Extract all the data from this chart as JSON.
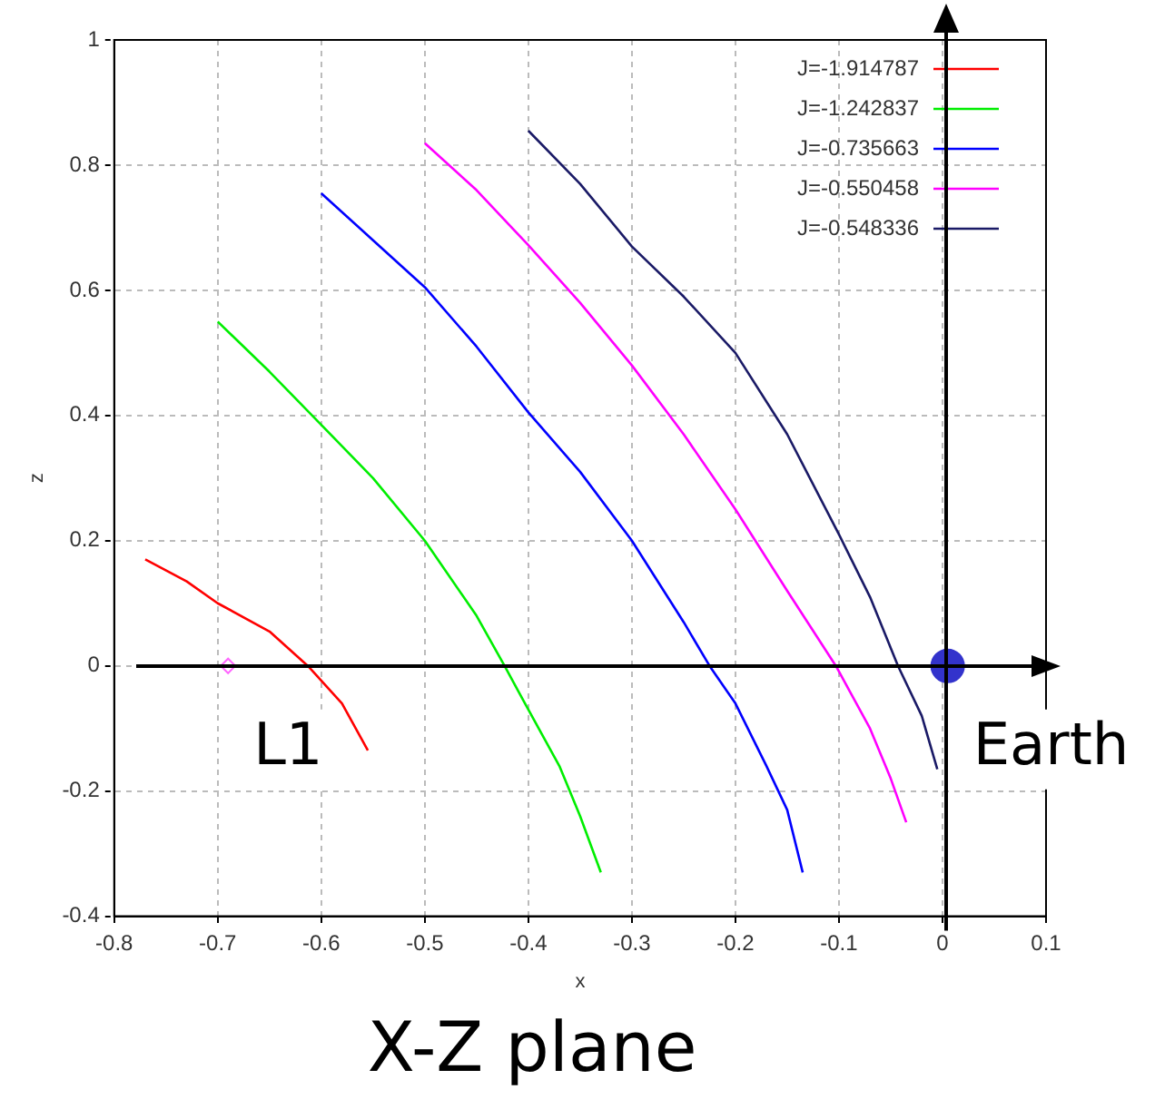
{
  "chart_data": {
    "type": "line",
    "title": "X-Z plane",
    "xlabel": "x",
    "ylabel": "z",
    "xlim": [
      -0.8,
      0.1
    ],
    "xticks": [
      -0.8,
      -0.7,
      -0.6,
      -0.5,
      -0.4,
      -0.3,
      -0.2,
      -0.1,
      0,
      0.1
    ],
    "ylim": [
      -0.4,
      1
    ],
    "yticks": [
      -0.4,
      -0.2,
      0,
      0.2,
      0.4,
      0.6,
      0.8,
      1
    ],
    "grid": true,
    "legend": "top right",
    "marker": "none",
    "annotations": [
      {
        "text": "L1",
        "x": -0.69,
        "y": 0
      },
      {
        "text": "Earth",
        "x": 0.005,
        "y": 0
      }
    ],
    "series": [
      {
        "name": "J=-1.914787",
        "color": "#ff0000",
        "x": [
          -0.77,
          -0.73,
          -0.7,
          -0.65,
          -0.613,
          -0.58,
          -0.555
        ],
        "values": [
          0.17,
          0.135,
          0.1,
          0.055,
          0,
          -0.06,
          -0.135
        ]
      },
      {
        "name": "J=-1.242837",
        "color": "#00ee00",
        "x": [
          -0.7,
          -0.65,
          -0.6,
          -0.55,
          -0.5,
          -0.45,
          -0.423,
          -0.4,
          -0.37,
          -0.35,
          -0.33
        ],
        "values": [
          0.55,
          0.47,
          0.385,
          0.3,
          0.2,
          0.08,
          0,
          -0.07,
          -0.16,
          -0.24,
          -0.33
        ]
      },
      {
        "name": "J=-0.735663",
        "color": "#0000ff",
        "x": [
          -0.6,
          -0.55,
          -0.5,
          -0.45,
          -0.4,
          -0.35,
          -0.3,
          -0.25,
          -0.225,
          -0.2,
          -0.17,
          -0.15,
          -0.135
        ],
        "values": [
          0.755,
          0.68,
          0.605,
          0.51,
          0.405,
          0.31,
          0.2,
          0.07,
          0,
          -0.06,
          -0.16,
          -0.23,
          -0.33
        ]
      },
      {
        "name": "J=-0.550458",
        "color": "#ff00ff",
        "x": [
          -0.5,
          -0.45,
          -0.4,
          -0.35,
          -0.3,
          -0.25,
          -0.2,
          -0.15,
          -0.103,
          -0.07,
          -0.05,
          -0.035
        ],
        "values": [
          0.835,
          0.76,
          0.672,
          0.58,
          0.48,
          0.37,
          0.25,
          0.12,
          0,
          -0.1,
          -0.18,
          -0.25
        ]
      },
      {
        "name": "J=-0.548336",
        "color": "#1a1a66",
        "x": [
          -0.4,
          -0.35,
          -0.3,
          -0.25,
          -0.2,
          -0.15,
          -0.1,
          -0.07,
          -0.043,
          -0.02,
          -0.005
        ],
        "values": [
          0.855,
          0.77,
          0.67,
          0.59,
          0.5,
          0.37,
          0.21,
          0.11,
          0,
          -0.08,
          -0.165
        ]
      },
      {
        "type": "scatter",
        "marker": "diamond",
        "color": "#ff66ff",
        "x": [
          -0.69
        ],
        "values": [
          0
        ]
      },
      {
        "type": "scatter",
        "marker": "circle",
        "color": "#3333cc",
        "x": [
          0.005
        ],
        "values": [
          0
        ]
      }
    ]
  }
}
